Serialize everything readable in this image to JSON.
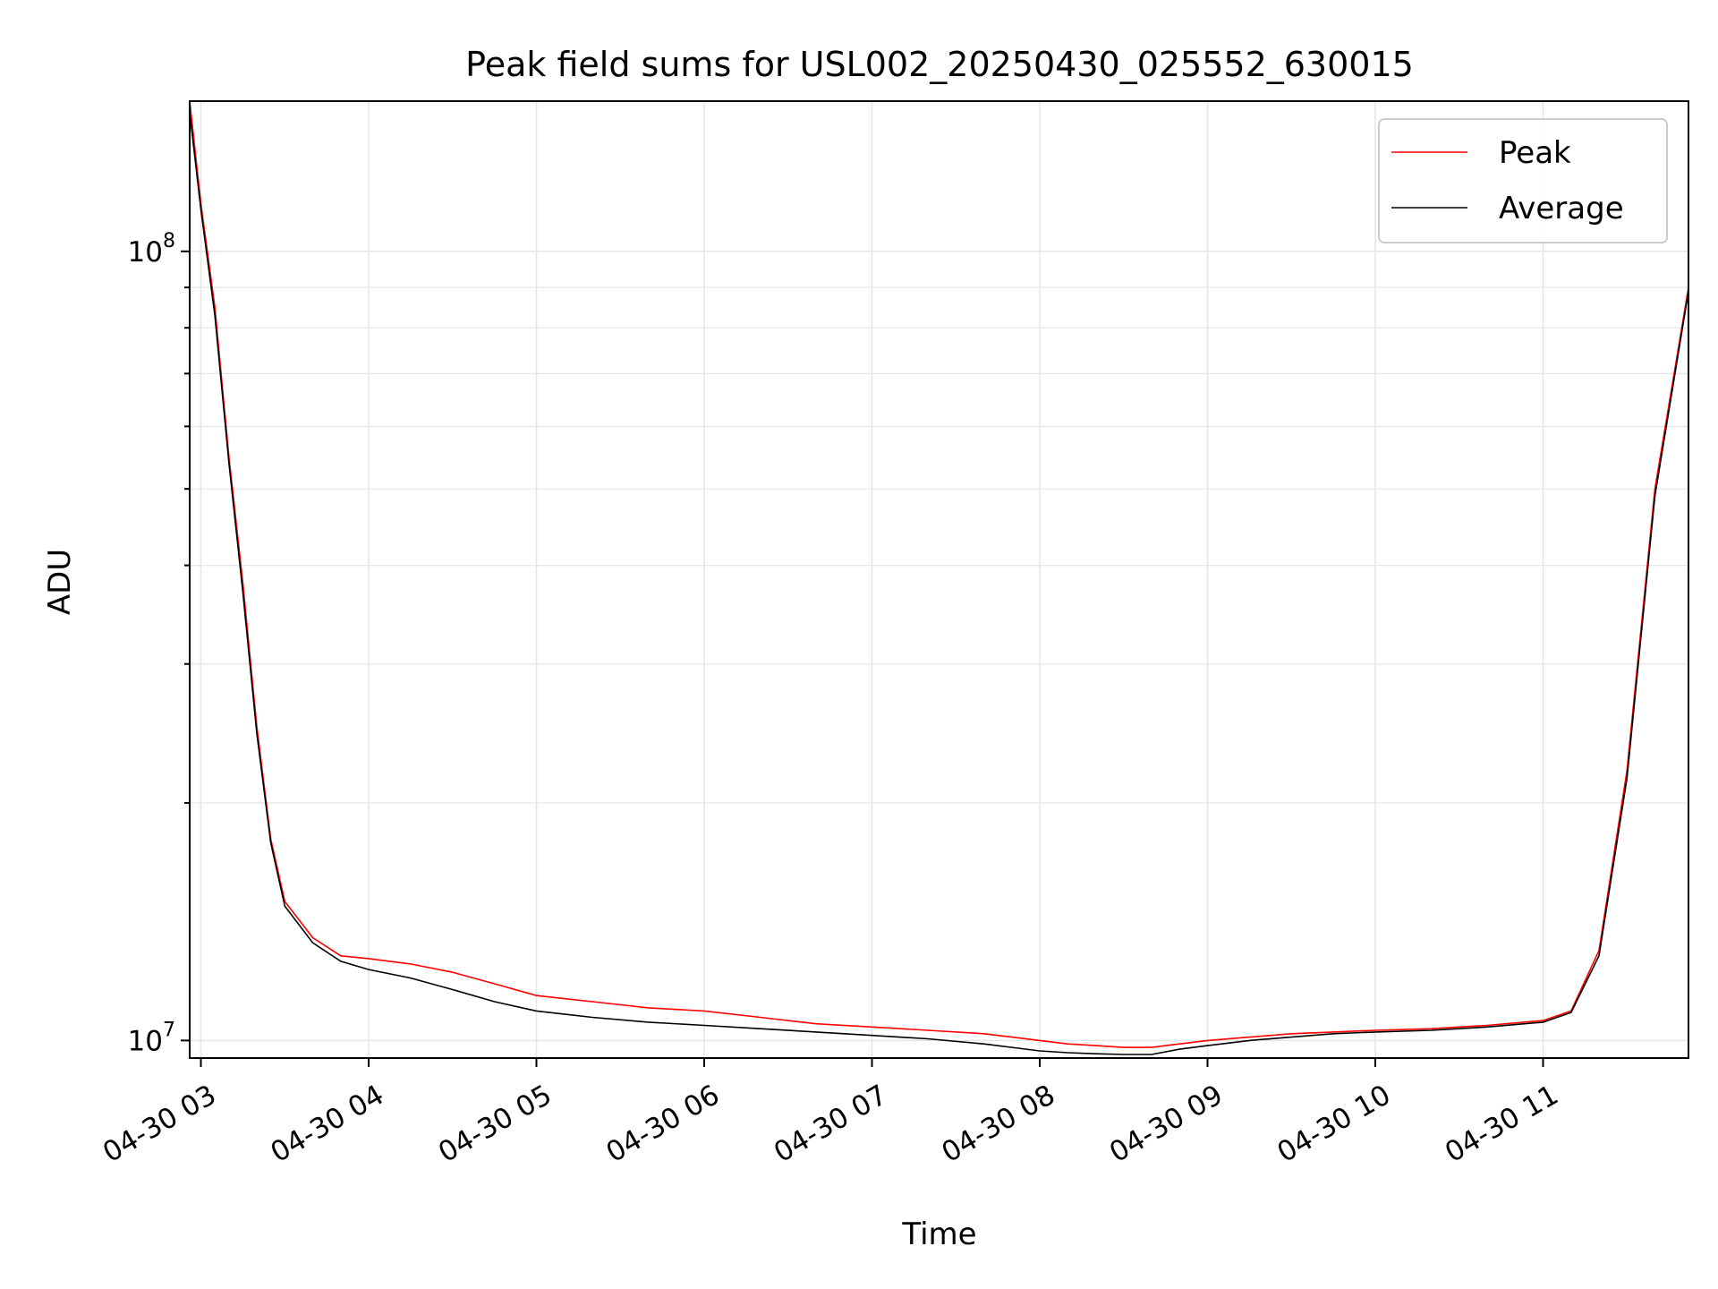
{
  "chart_data": {
    "type": "line",
    "title": "Peak field sums for USL002_20250430_025552_630015",
    "xlabel": "Time",
    "ylabel": "ADU",
    "yscale": "log",
    "xlim": [
      "04-30 02:56",
      "04-30 11:52"
    ],
    "ylim": [
      9500000,
      155000000
    ],
    "grid": true,
    "legend_position": "top-right",
    "x_ticks": [
      {
        "label": "04-30 03",
        "t": "03:00"
      },
      {
        "label": "04-30 04",
        "t": "04:00"
      },
      {
        "label": "04-30 05",
        "t": "05:00"
      },
      {
        "label": "04-30 06",
        "t": "06:00"
      },
      {
        "label": "04-30 07",
        "t": "07:00"
      },
      {
        "label": "04-30 08",
        "t": "08:00"
      },
      {
        "label": "04-30 09",
        "t": "09:00"
      },
      {
        "label": "04-30 10",
        "t": "10:00"
      },
      {
        "label": "04-30 11",
        "t": "11:00"
      }
    ],
    "y_ticks": [
      {
        "base": "10",
        "exp": "7",
        "value": 10000000
      },
      {
        "base": "10",
        "exp": "8",
        "value": 100000000
      }
    ],
    "series": [
      {
        "name": "Peak",
        "color": "#ff0000",
        "x": [
          "02:56",
          "03:00",
          "03:05",
          "03:10",
          "03:15",
          "03:20",
          "03:25",
          "03:30",
          "03:40",
          "03:50",
          "04:00",
          "04:15",
          "04:30",
          "04:45",
          "05:00",
          "05:20",
          "05:40",
          "06:00",
          "06:20",
          "06:40",
          "07:00",
          "07:20",
          "07:40",
          "08:00",
          "08:10",
          "08:20",
          "08:30",
          "08:40",
          "08:50",
          "09:00",
          "09:15",
          "09:30",
          "09:45",
          "10:00",
          "10:20",
          "10:40",
          "11:00",
          "11:10",
          "11:20",
          "11:30",
          "11:40",
          "11:52"
        ],
        "y": [
          155000000,
          115000000,
          85000000,
          55000000,
          38000000,
          25000000,
          18000000,
          15000000,
          13500000,
          12800000,
          12700000,
          12500000,
          12200000,
          11800000,
          11400000,
          11200000,
          11000000,
          10900000,
          10700000,
          10500000,
          10400000,
          10300000,
          10200000,
          10000000,
          9900000,
          9850000,
          9800000,
          9800000,
          9900000,
          10000000,
          10100000,
          10200000,
          10250000,
          10300000,
          10350000,
          10450000,
          10600000,
          10900000,
          13000000,
          22000000,
          50000000,
          90000000
        ]
      },
      {
        "name": "Average",
        "color": "#000000",
        "x": [
          "02:56",
          "03:00",
          "03:05",
          "03:10",
          "03:15",
          "03:20",
          "03:25",
          "03:30",
          "03:40",
          "03:50",
          "04:00",
          "04:15",
          "04:30",
          "04:45",
          "05:00",
          "05:20",
          "05:40",
          "06:00",
          "06:20",
          "06:40",
          "07:00",
          "07:20",
          "07:40",
          "08:00",
          "08:10",
          "08:20",
          "08:30",
          "08:40",
          "08:50",
          "09:00",
          "09:15",
          "09:30",
          "09:45",
          "10:00",
          "10:20",
          "10:40",
          "11:00",
          "11:10",
          "11:20",
          "11:30",
          "11:40",
          "11:52"
        ],
        "y": [
          150000000,
          113000000,
          83000000,
          54000000,
          37000000,
          24500000,
          17800000,
          14800000,
          13300000,
          12600000,
          12300000,
          12000000,
          11600000,
          11200000,
          10900000,
          10700000,
          10550000,
          10450000,
          10350000,
          10250000,
          10150000,
          10050000,
          9900000,
          9700000,
          9650000,
          9620000,
          9600000,
          9600000,
          9750000,
          9850000,
          10000000,
          10100000,
          10200000,
          10250000,
          10300000,
          10400000,
          10550000,
          10850000,
          12800000,
          21500000,
          49000000,
          89000000
        ]
      }
    ]
  }
}
